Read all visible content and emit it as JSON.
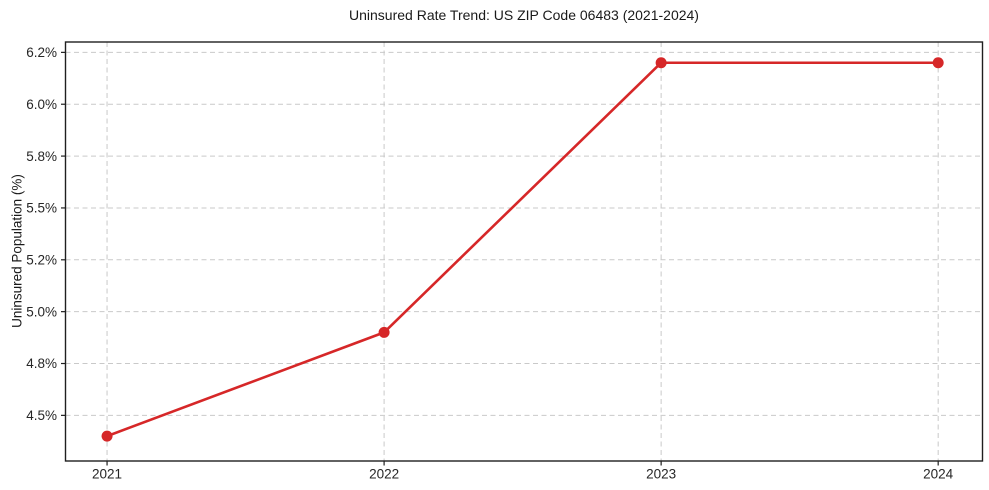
{
  "chart_data": {
    "type": "line",
    "title": "Uninsured Rate Trend: US ZIP Code 06483 (2021-2024)",
    "xlabel": "",
    "ylabel": "Uninsured Population (%)",
    "x": [
      2021,
      2022,
      2023,
      2024
    ],
    "x_tick_labels": [
      "2021",
      "2022",
      "2023",
      "2024"
    ],
    "series": [
      {
        "name": "Uninsured rate",
        "values": [
          4.4,
          4.9,
          6.2,
          6.2
        ]
      }
    ],
    "y_ticks": [
      {
        "value": 4.5,
        "label": "4.5%"
      },
      {
        "value": 4.75,
        "label": "4.8%"
      },
      {
        "value": 5.0,
        "label": "5.0%"
      },
      {
        "value": 5.25,
        "label": "5.2%"
      },
      {
        "value": 5.5,
        "label": "5.5%"
      },
      {
        "value": 5.75,
        "label": "5.8%"
      },
      {
        "value": 6.0,
        "label": "6.0%"
      },
      {
        "value": 6.25,
        "label": "6.2%"
      }
    ],
    "xlim": [
      2020.85,
      2024.16
    ],
    "ylim": [
      4.28,
      6.3
    ],
    "grid": true,
    "grid_style": "dashed",
    "legend": false,
    "colors": {
      "line": "#d62728",
      "marker": "#d62728",
      "grid": "#c9c9c9",
      "spine": "#1f1f1f",
      "tick": "#1f1f1f",
      "background": "#ffffff"
    }
  }
}
